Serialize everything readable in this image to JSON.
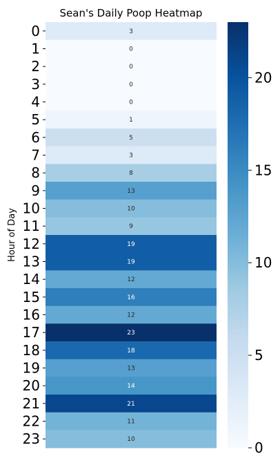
{
  "chart_data": {
    "type": "heatmap",
    "title": "Sean's Daily Poop Heatmap",
    "ylabel": "Hour of Day",
    "xlabel": "",
    "rows": [
      "0",
      "1",
      "2",
      "3",
      "4",
      "5",
      "6",
      "7",
      "8",
      "9",
      "10",
      "11",
      "12",
      "13",
      "14",
      "15",
      "16",
      "17",
      "18",
      "19",
      "20",
      "21",
      "22",
      "23"
    ],
    "values": [
      3,
      0,
      0,
      0,
      0,
      1,
      5,
      3,
      8,
      13,
      10,
      9,
      19,
      19,
      12,
      16,
      12,
      23,
      18,
      13,
      14,
      21,
      11,
      10
    ],
    "annotations": [
      "3",
      "0",
      "0",
      "0",
      "0",
      "1",
      "5",
      "3",
      "8",
      "13",
      "10",
      "9",
      "19",
      "19",
      "12",
      "16",
      "12",
      "23",
      "18",
      "13",
      "14",
      "21",
      "11",
      "10"
    ],
    "colormap": "Blues",
    "vmin": 0,
    "vmax": 23,
    "colorbar_ticks": [
      0,
      5,
      10,
      15,
      20
    ],
    "colorbar_tick_labels": [
      "0",
      "5",
      "10",
      "15",
      "20"
    ],
    "colorbar": true,
    "grid": false
  }
}
